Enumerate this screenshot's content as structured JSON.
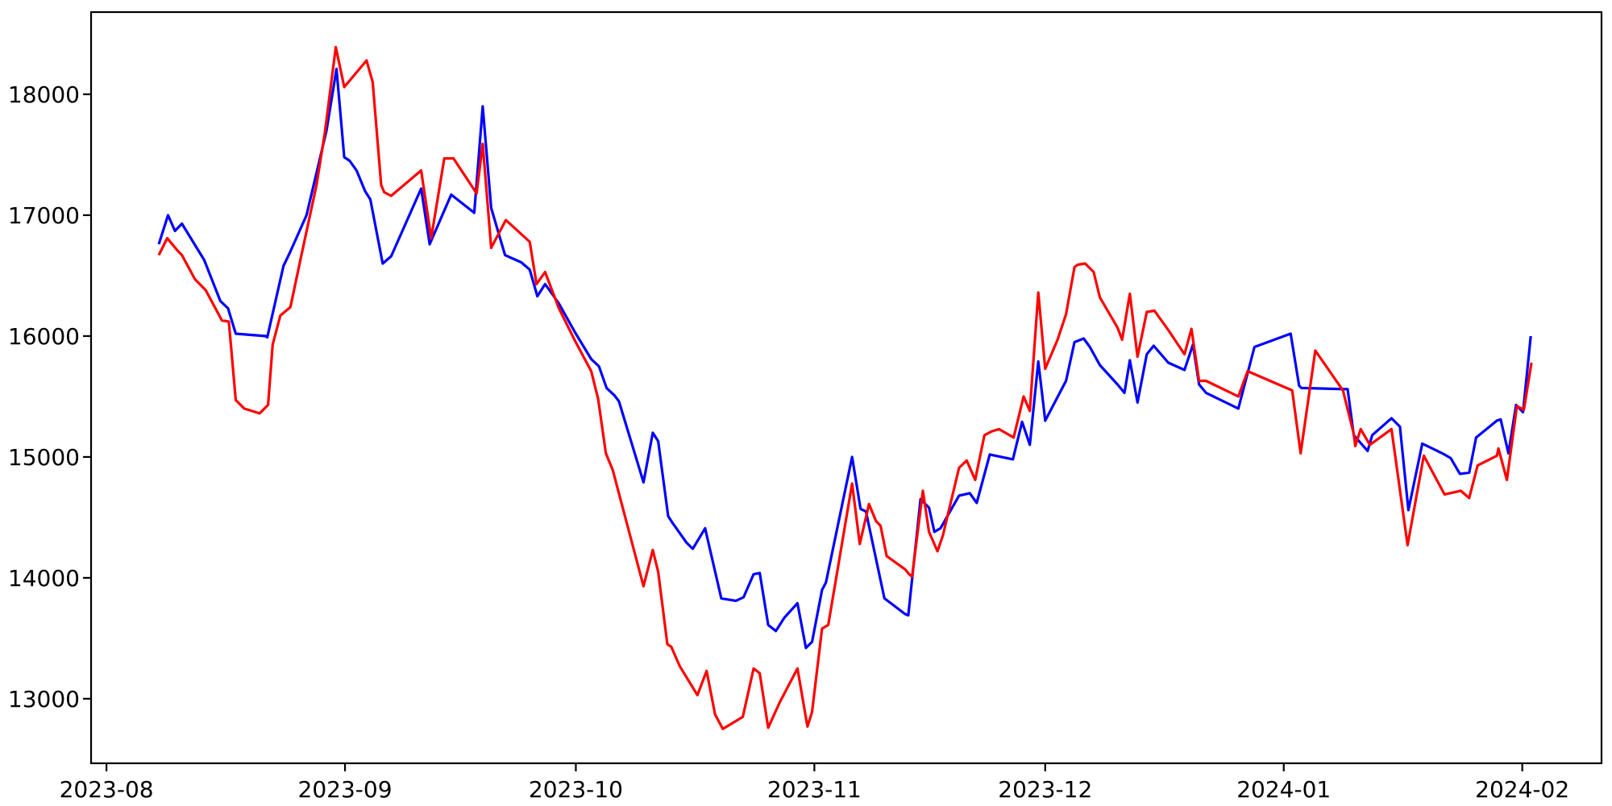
{
  "figure": {
    "background": "#ffffff",
    "text_color": "#000000",
    "spine_color": "#000000"
  },
  "chart_data": {
    "type": "line",
    "title": "",
    "xlabel": "",
    "ylabel": "",
    "grid": false,
    "legend_position": "none",
    "x_axis": {
      "origin_date": "2023-08-01",
      "unit": "days since 2023-08-01",
      "tick_day_offsets": [
        0,
        31,
        61,
        92,
        122,
        153,
        184
      ],
      "tick_labels": [
        "2023-08",
        "2023-09",
        "2023-10",
        "2023-11",
        "2023-12",
        "2024-01",
        "2024-02"
      ],
      "range_days": [
        -2.0,
        194.3
      ]
    },
    "y_axis": {
      "ticks": [
        13000,
        14000,
        15000,
        16000,
        17000,
        18000
      ],
      "tick_labels": [
        "13000",
        "14000",
        "15000",
        "16000",
        "17000",
        "18000"
      ],
      "range": [
        12466,
        18680
      ]
    },
    "series": [
      {
        "name": "blue-series",
        "color": "#0000ff",
        "points": [
          [
            6.8,
            16760
          ],
          [
            8,
            17000
          ],
          [
            8.9,
            16870
          ],
          [
            9.8,
            16930
          ],
          [
            12.7,
            16630
          ],
          [
            14.8,
            16290
          ],
          [
            15.8,
            16230
          ],
          [
            16.8,
            16020
          ],
          [
            20.7,
            16000
          ],
          [
            20.9,
            15990
          ],
          [
            23,
            16580
          ],
          [
            23.9,
            16700
          ],
          [
            26,
            17000
          ],
          [
            28.6,
            17700
          ],
          [
            29.9,
            18210
          ],
          [
            30.9,
            17480
          ],
          [
            31.6,
            17450
          ],
          [
            32.5,
            17370
          ],
          [
            33.6,
            17200
          ],
          [
            34.3,
            17130
          ],
          [
            35.9,
            16600
          ],
          [
            37,
            16660
          ],
          [
            40.9,
            17220
          ],
          [
            42,
            16760
          ],
          [
            44.8,
            17170
          ],
          [
            47.8,
            17020
          ],
          [
            48.9,
            17900
          ],
          [
            50,
            17060
          ],
          [
            51.8,
            16670
          ],
          [
            53.9,
            16610
          ],
          [
            55,
            16550
          ],
          [
            56,
            16330
          ],
          [
            57,
            16430
          ],
          [
            58.8,
            16270
          ],
          [
            60.9,
            16030
          ],
          [
            63,
            15810
          ],
          [
            64,
            15750
          ],
          [
            65,
            15570
          ],
          [
            66,
            15510
          ],
          [
            66.6,
            15460
          ],
          [
            69.8,
            14790
          ],
          [
            71,
            15200
          ],
          [
            71.7,
            15130
          ],
          [
            73,
            14510
          ],
          [
            73.5,
            14460
          ],
          [
            75.4,
            14290
          ],
          [
            76.2,
            14240
          ],
          [
            77.8,
            14410
          ],
          [
            79.9,
            13830
          ],
          [
            81.8,
            13810
          ],
          [
            82.8,
            13840
          ],
          [
            84.1,
            14030
          ],
          [
            84.9,
            14040
          ],
          [
            86,
            13610
          ],
          [
            87,
            13560
          ],
          [
            88.1,
            13670
          ],
          [
            89.8,
            13790
          ],
          [
            90.9,
            13420
          ],
          [
            91.7,
            13470
          ],
          [
            93,
            13900
          ],
          [
            93.5,
            13960
          ],
          [
            96.9,
            15000
          ],
          [
            98,
            14570
          ],
          [
            98.7,
            14550
          ],
          [
            101.1,
            13830
          ],
          [
            103.8,
            13700
          ],
          [
            104.2,
            13690
          ],
          [
            105.8,
            14650
          ],
          [
            106.9,
            14580
          ],
          [
            107.6,
            14380
          ],
          [
            108.4,
            14410
          ],
          [
            110.8,
            14680
          ],
          [
            112.2,
            14700
          ],
          [
            113.1,
            14620
          ],
          [
            114.8,
            15020
          ],
          [
            117.8,
            14980
          ],
          [
            119,
            15290
          ],
          [
            120,
            15100
          ],
          [
            121.1,
            15790
          ],
          [
            122,
            15300
          ],
          [
            124.7,
            15630
          ],
          [
            125.8,
            15950
          ],
          [
            127,
            15980
          ],
          [
            127.8,
            15910
          ],
          [
            129.1,
            15760
          ],
          [
            131.4,
            15600
          ],
          [
            132.3,
            15530
          ],
          [
            133,
            15800
          ],
          [
            134,
            15450
          ],
          [
            135.2,
            15850
          ],
          [
            136.1,
            15920
          ],
          [
            138,
            15780
          ],
          [
            140.1,
            15720
          ],
          [
            141.2,
            15930
          ],
          [
            142,
            15600
          ],
          [
            142.9,
            15530
          ],
          [
            147.1,
            15400
          ],
          [
            149.2,
            15910
          ],
          [
            153.9,
            16020
          ],
          [
            155,
            15590
          ],
          [
            155.3,
            15570
          ],
          [
            161.3,
            15560
          ],
          [
            162.1,
            15180
          ],
          [
            163.9,
            15050
          ],
          [
            164.5,
            15180
          ],
          [
            167,
            15320
          ],
          [
            168.1,
            15250
          ],
          [
            169.2,
            14560
          ],
          [
            171,
            15110
          ],
          [
            173.6,
            15030
          ],
          [
            174.7,
            14990
          ],
          [
            175.9,
            14860
          ],
          [
            177.1,
            14870
          ],
          [
            178,
            15160
          ],
          [
            180.7,
            15300
          ],
          [
            181.2,
            15310
          ],
          [
            182.2,
            15030
          ],
          [
            183.2,
            15430
          ],
          [
            184.1,
            15370
          ],
          [
            185.1,
            16000
          ]
        ]
      },
      {
        "name": "red-series",
        "color": "#ff0000",
        "points": [
          [
            6.8,
            16670
          ],
          [
            7.9,
            16810
          ],
          [
            9.2,
            16710
          ],
          [
            9.8,
            16670
          ],
          [
            11.5,
            16470
          ],
          [
            12.9,
            16380
          ],
          [
            15,
            16130
          ],
          [
            15.9,
            16120
          ],
          [
            16.8,
            15470
          ],
          [
            17.9,
            15400
          ],
          [
            19.9,
            15360
          ],
          [
            21,
            15430
          ],
          [
            21.6,
            15930
          ],
          [
            22.6,
            16170
          ],
          [
            23.9,
            16240
          ],
          [
            25.2,
            16630
          ],
          [
            27.3,
            17250
          ],
          [
            28.4,
            17690
          ],
          [
            29.8,
            18390
          ],
          [
            30.9,
            18060
          ],
          [
            33.8,
            18280
          ],
          [
            34.6,
            18100
          ],
          [
            35.7,
            17250
          ],
          [
            36.1,
            17190
          ],
          [
            37,
            17160
          ],
          [
            40.9,
            17370
          ],
          [
            42.2,
            16810
          ],
          [
            43.9,
            17470
          ],
          [
            45.1,
            17470
          ],
          [
            47.8,
            17210
          ],
          [
            48.1,
            17180
          ],
          [
            48.9,
            17590
          ],
          [
            50,
            16730
          ],
          [
            51.9,
            16960
          ],
          [
            55,
            16780
          ],
          [
            55.9,
            16430
          ],
          [
            57,
            16530
          ],
          [
            58.8,
            16230
          ],
          [
            60.9,
            15960
          ],
          [
            63,
            15710
          ],
          [
            63.9,
            15480
          ],
          [
            64.9,
            15030
          ],
          [
            65.8,
            14890
          ],
          [
            69.8,
            13930
          ],
          [
            71,
            14230
          ],
          [
            71.7,
            14050
          ],
          [
            72.9,
            13450
          ],
          [
            73.4,
            13430
          ],
          [
            74.5,
            13270
          ],
          [
            76.8,
            13030
          ],
          [
            78,
            13230
          ],
          [
            79.1,
            12870
          ],
          [
            80.1,
            12750
          ],
          [
            82.7,
            12850
          ],
          [
            84.1,
            13250
          ],
          [
            84.9,
            13210
          ],
          [
            86,
            12760
          ],
          [
            87.5,
            12970
          ],
          [
            89.8,
            13250
          ],
          [
            91.1,
            12770
          ],
          [
            91.7,
            12890
          ],
          [
            93,
            13580
          ],
          [
            93.8,
            13610
          ],
          [
            96.9,
            14780
          ],
          [
            97.9,
            14280
          ],
          [
            99.1,
            14610
          ],
          [
            100,
            14470
          ],
          [
            100.6,
            14430
          ],
          [
            101.4,
            14180
          ],
          [
            103.8,
            14070
          ],
          [
            104.3,
            14030
          ],
          [
            104.7,
            14010
          ],
          [
            106.1,
            14720
          ],
          [
            106.9,
            14380
          ],
          [
            108,
            14220
          ],
          [
            108.7,
            14350
          ],
          [
            110.8,
            14910
          ],
          [
            111.8,
            14970
          ],
          [
            112.9,
            14810
          ],
          [
            114.1,
            15180
          ],
          [
            115,
            15210
          ],
          [
            116,
            15230
          ],
          [
            117.9,
            15160
          ],
          [
            119.2,
            15500
          ],
          [
            120,
            15380
          ],
          [
            121.1,
            16360
          ],
          [
            122,
            15730
          ],
          [
            123.6,
            15970
          ],
          [
            124.7,
            16180
          ],
          [
            125.8,
            16570
          ],
          [
            126.2,
            16590
          ],
          [
            127.2,
            16600
          ],
          [
            128.3,
            16530
          ],
          [
            129.1,
            16320
          ],
          [
            131.4,
            16070
          ],
          [
            132,
            15970
          ],
          [
            133,
            16350
          ],
          [
            134,
            15830
          ],
          [
            135.2,
            16200
          ],
          [
            136.2,
            16210
          ],
          [
            138,
            16050
          ],
          [
            140.1,
            15850
          ],
          [
            141,
            16060
          ],
          [
            142,
            15630
          ],
          [
            142.9,
            15630
          ],
          [
            147.1,
            15500
          ],
          [
            148.3,
            15710
          ],
          [
            154.1,
            15550
          ],
          [
            155.2,
            15030
          ],
          [
            157.1,
            15880
          ],
          [
            160.7,
            15550
          ],
          [
            162.1,
            15190
          ],
          [
            162.3,
            15090
          ],
          [
            163,
            15230
          ],
          [
            164.2,
            15100
          ],
          [
            167,
            15230
          ],
          [
            169.1,
            14270
          ],
          [
            171.2,
            15010
          ],
          [
            173.9,
            14690
          ],
          [
            176,
            14720
          ],
          [
            177.1,
            14660
          ],
          [
            178.2,
            14930
          ],
          [
            180.7,
            15010
          ],
          [
            180.9,
            15070
          ],
          [
            182,
            14810
          ],
          [
            183.3,
            15420
          ],
          [
            184.2,
            15390
          ],
          [
            185.2,
            15780
          ]
        ]
      }
    ]
  }
}
